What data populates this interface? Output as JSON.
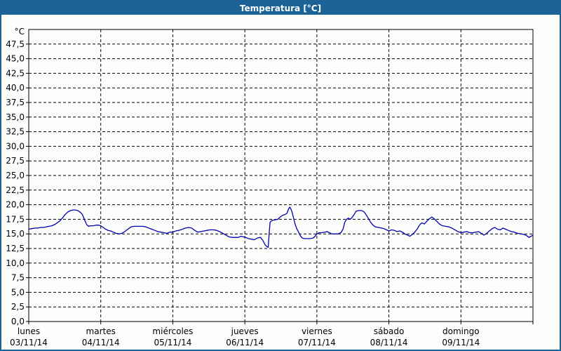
{
  "title_bar": {
    "title": "Temperatura [°C]"
  },
  "colors": {
    "titlebar_bg": "#1b6397",
    "titlebar_text": "#ffffff",
    "window_border": "#1b6397",
    "background": "#fdfdfc",
    "plot_border": "#000000",
    "grid": "#000000",
    "line": "#0000b2",
    "label_text": "#000000"
  },
  "chart_data": {
    "type": "line",
    "title": "Temperatura [°C]",
    "y_unit": "°C",
    "ylim": [
      0,
      50
    ],
    "y_tick_step": 2.5,
    "y_tick_labels": [
      "0,0",
      "2,5",
      "5,0",
      "7,5",
      "10,0",
      "12,5",
      "15,0",
      "17,5",
      "20,0",
      "22,5",
      "25,0",
      "27,5",
      "30,0",
      "32,5",
      "35,0",
      "37,5",
      "40,0",
      "42,5",
      "45,0",
      "47,5"
    ],
    "grid": {
      "style": "dashed",
      "horizontal": true,
      "vertical": "day-boundaries"
    },
    "x_axis": {
      "span_days": 7,
      "days": [
        {
          "name": "lunes",
          "date": "03/11/14"
        },
        {
          "name": "martes",
          "date": "04/11/14"
        },
        {
          "name": "miércoles",
          "date": "05/11/14"
        },
        {
          "name": "jueves",
          "date": "06/11/14"
        },
        {
          "name": "viernes",
          "date": "07/11/14"
        },
        {
          "name": "sábado",
          "date": "08/11/14"
        },
        {
          "name": "domingo",
          "date": "09/11/14"
        }
      ]
    },
    "series": [
      {
        "name": "Temperatura",
        "color": "#0000b2",
        "x_unit": "hours_since_monday_00h",
        "points": [
          [
            0,
            15.8
          ],
          [
            1,
            15.9
          ],
          [
            2.1,
            16.0
          ],
          [
            3,
            16.0
          ],
          [
            4,
            16.1
          ],
          [
            4.9,
            16.1
          ],
          [
            5.8,
            16.2
          ],
          [
            6.8,
            16.3
          ],
          [
            7.7,
            16.4
          ],
          [
            8.6,
            16.6
          ],
          [
            9.5,
            16.9
          ],
          [
            10.3,
            17.2
          ],
          [
            11.2,
            17.7
          ],
          [
            12.1,
            18.3
          ],
          [
            13.1,
            18.8
          ],
          [
            14,
            19.0
          ],
          [
            14.7,
            19.1
          ],
          [
            15.5,
            19.1
          ],
          [
            16.3,
            19.0
          ],
          [
            17.2,
            18.7
          ],
          [
            17.9,
            18.3
          ],
          [
            18.7,
            17.3
          ],
          [
            19.3,
            16.6
          ],
          [
            19.9,
            16.3
          ],
          [
            20.7,
            16.4
          ],
          [
            21.5,
            16.4
          ],
          [
            22.4,
            16.5
          ],
          [
            23.2,
            16.5
          ],
          [
            24,
            16.4
          ],
          [
            24.8,
            16.1
          ],
          [
            25.6,
            15.8
          ],
          [
            26.4,
            15.6
          ],
          [
            27.3,
            15.5
          ],
          [
            28.2,
            15.3
          ],
          [
            29.1,
            15.1
          ],
          [
            30.1,
            15.0
          ],
          [
            31,
            15.1
          ],
          [
            32,
            15.4
          ],
          [
            33,
            15.8
          ],
          [
            34.1,
            16.2
          ],
          [
            35,
            16.3
          ],
          [
            36,
            16.3
          ],
          [
            37,
            16.3
          ],
          [
            38,
            16.3
          ],
          [
            39,
            16.2
          ],
          [
            40,
            16.0
          ],
          [
            41,
            15.8
          ],
          [
            42,
            15.6
          ],
          [
            43,
            15.4
          ],
          [
            44,
            15.3
          ],
          [
            45,
            15.2
          ],
          [
            46,
            15.1
          ],
          [
            47,
            15.3
          ],
          [
            48,
            15.3
          ],
          [
            49,
            15.5
          ],
          [
            50,
            15.6
          ],
          [
            51.2,
            15.8
          ],
          [
            52.2,
            16.0
          ],
          [
            53.3,
            16.1
          ],
          [
            54.3,
            16.0
          ],
          [
            55.3,
            15.6
          ],
          [
            56.3,
            15.3
          ],
          [
            57.3,
            15.4
          ],
          [
            58.4,
            15.5
          ],
          [
            59.4,
            15.6
          ],
          [
            60.5,
            15.7
          ],
          [
            61.5,
            15.7
          ],
          [
            62.6,
            15.6
          ],
          [
            63.6,
            15.4
          ],
          [
            64.7,
            15.1
          ],
          [
            65.7,
            14.8
          ],
          [
            66.7,
            14.5
          ],
          [
            67.8,
            14.4
          ],
          [
            68.8,
            14.4
          ],
          [
            69.8,
            14.4
          ],
          [
            70.7,
            14.6
          ],
          [
            71.5,
            14.5
          ],
          [
            72.2,
            14.4
          ],
          [
            73.2,
            14.2
          ],
          [
            74.2,
            14.1
          ],
          [
            75.2,
            14.0
          ],
          [
            76.2,
            14.3
          ],
          [
            77.2,
            14.4
          ],
          [
            78,
            13.9
          ],
          [
            78.8,
            13.1
          ],
          [
            79.4,
            12.8
          ],
          [
            79.8,
            12.7
          ],
          [
            80.1,
            15.0
          ],
          [
            80.4,
            17.0
          ],
          [
            81,
            17.3
          ],
          [
            82,
            17.4
          ],
          [
            83,
            17.5
          ],
          [
            83.8,
            17.9
          ],
          [
            84.6,
            18.2
          ],
          [
            85.3,
            18.3
          ],
          [
            86,
            18.5
          ],
          [
            86.6,
            19.3
          ],
          [
            87,
            19.6
          ],
          [
            87.4,
            19.2
          ],
          [
            87.8,
            18.6
          ],
          [
            88.3,
            17.6
          ],
          [
            88.8,
            16.6
          ],
          [
            89.3,
            15.9
          ],
          [
            89.9,
            15.3
          ],
          [
            90.5,
            14.7
          ],
          [
            91.1,
            14.3
          ],
          [
            91.8,
            14.2
          ],
          [
            92.8,
            14.2
          ],
          [
            93.8,
            14.2
          ],
          [
            94.8,
            14.3
          ],
          [
            95.4,
            14.6
          ],
          [
            96,
            15.0
          ],
          [
            96.8,
            15.2
          ],
          [
            97.7,
            15.2
          ],
          [
            98.6,
            15.3
          ],
          [
            99.4,
            15.4
          ],
          [
            100.2,
            15.2
          ],
          [
            101,
            15.0
          ],
          [
            102,
            15.0
          ],
          [
            103,
            15.0
          ],
          [
            104,
            15.2
          ],
          [
            104.7,
            15.8
          ],
          [
            105.3,
            17.0
          ],
          [
            105.9,
            17.5
          ],
          [
            106.5,
            17.7
          ],
          [
            107.1,
            17.5
          ],
          [
            107.7,
            17.8
          ],
          [
            108.4,
            18.3
          ],
          [
            109.1,
            18.9
          ],
          [
            110,
            19.0
          ],
          [
            110.9,
            19.0
          ],
          [
            111.7,
            18.8
          ],
          [
            112.4,
            18.3
          ],
          [
            113.1,
            17.7
          ],
          [
            113.9,
            17.0
          ],
          [
            114.7,
            16.5
          ],
          [
            115.5,
            16.2
          ],
          [
            116.5,
            16.1
          ],
          [
            117.5,
            16.0
          ],
          [
            118.4,
            15.9
          ],
          [
            119.2,
            15.7
          ],
          [
            120,
            15.5
          ],
          [
            120.9,
            15.7
          ],
          [
            121.8,
            15.6
          ],
          [
            122.7,
            15.4
          ],
          [
            123.6,
            15.5
          ],
          [
            124.5,
            15.3
          ],
          [
            125.3,
            15.0
          ],
          [
            126.2,
            14.8
          ],
          [
            127,
            14.6
          ],
          [
            127.8,
            14.9
          ],
          [
            128.6,
            15.3
          ],
          [
            129.4,
            15.8
          ],
          [
            130.2,
            16.5
          ],
          [
            131,
            16.9
          ],
          [
            131.8,
            16.7
          ],
          [
            132.7,
            17.2
          ],
          [
            133.5,
            17.6
          ],
          [
            134.3,
            17.9
          ],
          [
            135.1,
            17.6
          ],
          [
            135.9,
            17.2
          ],
          [
            136.8,
            16.7
          ],
          [
            137.8,
            16.4
          ],
          [
            138.9,
            16.3
          ],
          [
            140,
            16.2
          ],
          [
            141,
            16.0
          ],
          [
            142,
            15.7
          ],
          [
            143,
            15.4
          ],
          [
            144,
            15.2
          ],
          [
            145,
            15.3
          ],
          [
            146,
            15.4
          ],
          [
            147,
            15.2
          ],
          [
            148,
            15.2
          ],
          [
            149,
            15.3
          ],
          [
            149.9,
            15.4
          ],
          [
            150.8,
            15.1
          ],
          [
            151.7,
            14.8
          ],
          [
            152.6,
            15.1
          ],
          [
            153.5,
            15.5
          ],
          [
            154.4,
            15.9
          ],
          [
            155.3,
            16.1
          ],
          [
            156.2,
            15.8
          ],
          [
            157.1,
            15.7
          ],
          [
            158,
            16.0
          ],
          [
            158.9,
            15.8
          ],
          [
            159.8,
            15.6
          ],
          [
            160.8,
            15.4
          ],
          [
            161.8,
            15.3
          ],
          [
            162.9,
            15.1
          ],
          [
            164,
            15.0
          ],
          [
            165,
            14.9
          ],
          [
            165.9,
            14.7
          ],
          [
            166.7,
            14.4
          ],
          [
            167.4,
            14.6
          ],
          [
            168,
            14.8
          ]
        ]
      }
    ]
  }
}
